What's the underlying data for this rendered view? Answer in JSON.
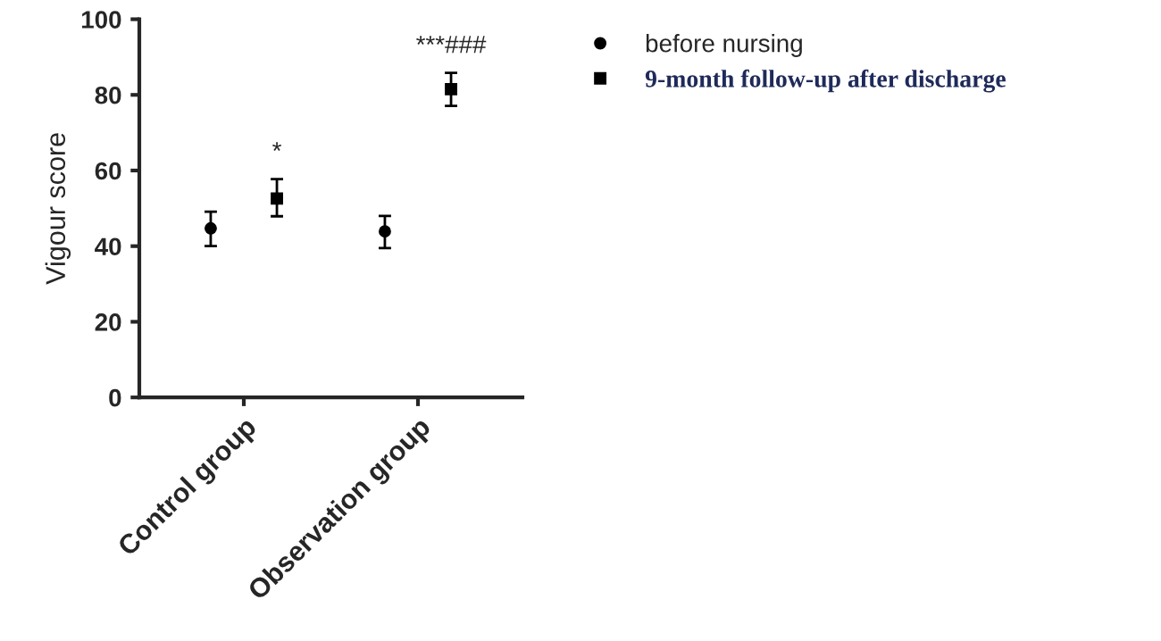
{
  "chart_data": {
    "type": "scatter",
    "ylabel": "Vigour score",
    "categories": [
      "Control group",
      "Observation group"
    ],
    "series": [
      {
        "name": "before nursing",
        "color": "#000000",
        "marker": "circle",
        "values": [
          44.7,
          43.9
        ],
        "errors": [
          [
            40.0,
            49.1
          ],
          [
            39.5,
            48.0
          ]
        ]
      },
      {
        "name": "9-month follow-up after discharge",
        "color": "#000000",
        "marker": "square",
        "values": [
          52.6,
          81.5
        ],
        "errors": [
          [
            47.9,
            57.7
          ],
          [
            77.1,
            85.8
          ]
        ]
      }
    ],
    "ylim": [
      0,
      100
    ],
    "yticks": [
      0,
      20,
      40,
      60,
      80,
      100
    ],
    "annotations": [
      "*",
      "***###"
    ],
    "grid": false,
    "legend": "right"
  }
}
